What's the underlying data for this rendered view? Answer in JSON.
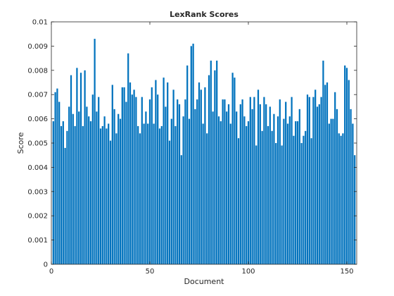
{
  "chart_data": {
    "type": "bar",
    "title": "LexRank Scores",
    "xlabel": "Document",
    "ylabel": "Score",
    "xlim": [
      0,
      155
    ],
    "ylim": [
      0,
      0.01
    ],
    "xticks": [
      0,
      50,
      100,
      150
    ],
    "yticks": [
      0,
      0.001,
      0.002,
      0.003,
      0.004,
      0.005,
      0.006,
      0.007,
      0.008,
      0.009,
      0.01
    ],
    "xtick_labels": [
      "0",
      "50",
      "100",
      "150"
    ],
    "ytick_labels": [
      "0",
      "0.001",
      "0.002",
      "0.003",
      "0.004",
      "0.005",
      "0.006",
      "0.007",
      "0.008",
      "0.009",
      "0.01"
    ],
    "grid": false,
    "bar_color": "#0072BD",
    "x": [
      1,
      2,
      3,
      4,
      5,
      6,
      7,
      8,
      9,
      10,
      11,
      12,
      13,
      14,
      15,
      16,
      17,
      18,
      19,
      20,
      21,
      22,
      23,
      24,
      25,
      26,
      27,
      28,
      29,
      30,
      31,
      32,
      33,
      34,
      35,
      36,
      37,
      38,
      39,
      40,
      41,
      42,
      43,
      44,
      45,
      46,
      47,
      48,
      49,
      50,
      51,
      52,
      53,
      54,
      55,
      56,
      57,
      58,
      59,
      60,
      61,
      62,
      63,
      64,
      65,
      66,
      67,
      68,
      69,
      70,
      71,
      72,
      73,
      74,
      75,
      76,
      77,
      78,
      79,
      80,
      81,
      82,
      83,
      84,
      85,
      86,
      87,
      88,
      89,
      90,
      91,
      92,
      93,
      94,
      95,
      96,
      97,
      98,
      99,
      100,
      101,
      102,
      103,
      104,
      105,
      106,
      107,
      108,
      109,
      110,
      111,
      112,
      113,
      114,
      115,
      116,
      117,
      118,
      119,
      120,
      121,
      122,
      123,
      124,
      125,
      126,
      127,
      128,
      129,
      130,
      131,
      132,
      133,
      134,
      135,
      136,
      137,
      138,
      139,
      140,
      141,
      142,
      143,
      144,
      145,
      146,
      147,
      148,
      149,
      150,
      151,
      152,
      153,
      154
    ],
    "values": [
      0.0059,
      0.0071,
      0.00725,
      0.0067,
      0.0057,
      0.0059,
      0.0048,
      0.0055,
      0.0065,
      0.0078,
      0.0062,
      0.0057,
      0.0081,
      0.0063,
      0.0079,
      0.0057,
      0.008,
      0.0065,
      0.0061,
      0.0059,
      0.007,
      0.0093,
      0.0063,
      0.0069,
      0.0056,
      0.0057,
      0.0061,
      0.0056,
      0.0058,
      0.0051,
      0.0074,
      0.0064,
      0.0054,
      0.0062,
      0.006,
      0.0073,
      0.0073,
      0.0067,
      0.0087,
      0.0075,
      0.007,
      0.0072,
      0.0069,
      0.0057,
      0.0054,
      0.0069,
      0.0058,
      0.0063,
      0.0058,
      0.0068,
      0.0073,
      0.0058,
      0.0076,
      0.007,
      0.0056,
      0.0057,
      0.0077,
      0.0065,
      0.0075,
      0.0051,
      0.006,
      0.0072,
      0.0057,
      0.0068,
      0.0066,
      0.0045,
      0.0061,
      0.0068,
      0.0082,
      0.006,
      0.009,
      0.0091,
      0.0064,
      0.0068,
      0.0075,
      0.0072,
      0.0058,
      0.0073,
      0.0054,
      0.0078,
      0.0084,
      0.0063,
      0.008,
      0.0084,
      0.0061,
      0.0059,
      0.0068,
      0.0068,
      0.0063,
      0.0066,
      0.0058,
      0.0079,
      0.0077,
      0.0063,
      0.0052,
      0.0066,
      0.0068,
      0.0061,
      0.0057,
      0.0059,
      0.0069,
      0.0064,
      0.0069,
      0.0049,
      0.0072,
      0.0066,
      0.0055,
      0.0069,
      0.0066,
      0.0057,
      0.0065,
      0.0055,
      0.0062,
      0.005,
      0.0061,
      0.0068,
      0.0049,
      0.006,
      0.0067,
      0.0058,
      0.0061,
      0.0069,
      0.0053,
      0.0059,
      0.0059,
      0.0064,
      0.005,
      0.0053,
      0.0055,
      0.007,
      0.0069,
      0.0052,
      0.0069,
      0.0072,
      0.0065,
      0.0066,
      0.0069,
      0.0084,
      0.0074,
      0.0075,
      0.0058,
      0.006,
      0.006,
      0.0071,
      0.0064,
      0.0054,
      0.0053,
      0.0054,
      0.0082,
      0.0081,
      0.0076,
      0.0064,
      0.0058,
      0.0045
    ]
  }
}
